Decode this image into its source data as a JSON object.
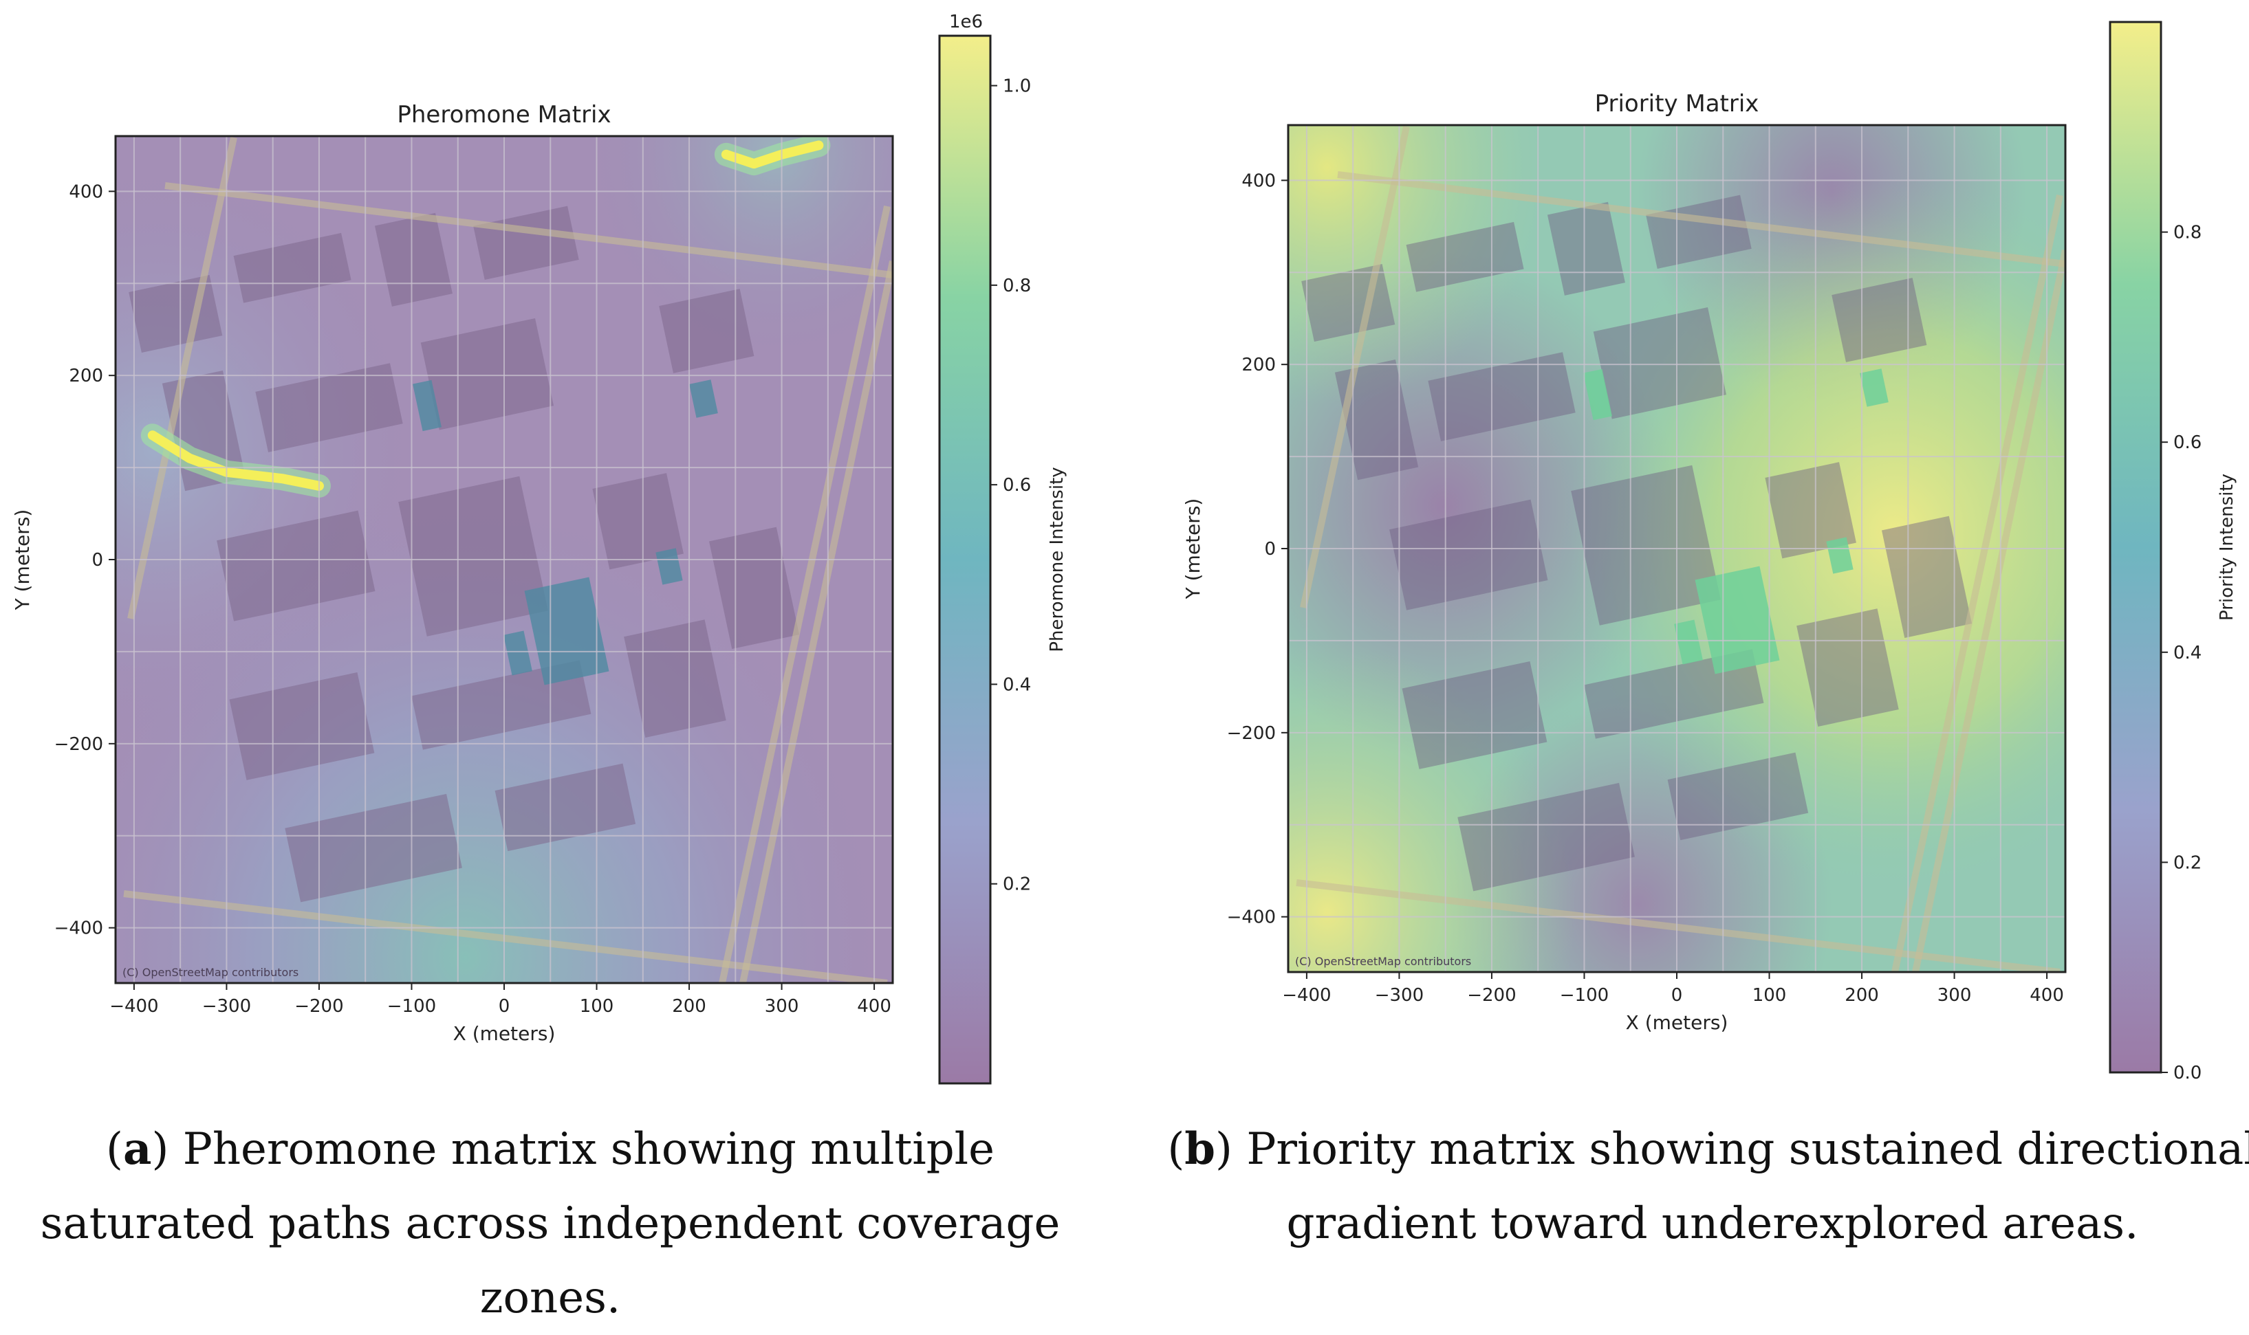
{
  "chart_data": [
    {
      "type": "heatmap",
      "title": "Pheromone Matrix",
      "xlabel": "X (meters)",
      "ylabel": "Y (meters)",
      "xlim": [
        -420,
        420
      ],
      "ylim": [
        -460,
        460
      ],
      "xticks": [
        "−400",
        "−300",
        "−200",
        "−100",
        "0",
        "100",
        "200",
        "300",
        "400"
      ],
      "xtick_values": [
        -400,
        -300,
        -200,
        -100,
        0,
        100,
        200,
        300,
        400
      ],
      "yticks": [
        "400",
        "200",
        "0",
        "−200",
        "−400"
      ],
      "ytick_values": [
        400,
        200,
        0,
        -200,
        -400
      ],
      "grid": true,
      "colormap": "viridis",
      "background": "OpenStreetMap street map",
      "map_credit": "(C) OpenStreetMap contributors",
      "colorbar": {
        "label": "Pheromone Intensity",
        "offset_text": "1e6",
        "range": [
          0.0,
          1.05
        ],
        "ticks": [
          "0.2",
          "0.4",
          "0.6",
          "0.8",
          "1.0"
        ],
        "tick_values": [
          0.2,
          0.4,
          0.6,
          0.8,
          1.0
        ]
      },
      "saturated_paths": [
        {
          "points": [
            [
              -380,
              135
            ],
            [
              -340,
              110
            ],
            [
              -300,
              95
            ],
            [
              -240,
              88
            ],
            [
              -200,
              80
            ]
          ]
        },
        {
          "points": [
            [
              240,
              440
            ],
            [
              270,
              430
            ],
            [
              300,
              440
            ],
            [
              340,
              450
            ]
          ]
        }
      ],
      "caption_letter": "a",
      "caption_text": " Pheromone matrix showing multiple saturated paths across independent coverage zones."
    },
    {
      "type": "heatmap",
      "title": "Priority Matrix",
      "xlabel": "X (meters)",
      "ylabel": "Y (meters)",
      "xlim": [
        -420,
        420
      ],
      "ylim": [
        -460,
        460
      ],
      "xticks": [
        "−400",
        "−300",
        "−200",
        "−100",
        "0",
        "100",
        "200",
        "300",
        "400"
      ],
      "xtick_values": [
        -400,
        -300,
        -200,
        -100,
        0,
        100,
        200,
        300,
        400
      ],
      "yticks": [
        "400",
        "200",
        "0",
        "−200",
        "−400"
      ],
      "ytick_values": [
        400,
        200,
        0,
        -200,
        -400
      ],
      "grid": true,
      "colormap": "viridis",
      "background": "OpenStreetMap street map",
      "map_credit": "(C) OpenStreetMap contributors",
      "colorbar": {
        "label": "Priority Intensity",
        "offset_text": "",
        "range": [
          0.0,
          1.0
        ],
        "ticks": [
          "0.0",
          "0.2",
          "0.4",
          "0.6",
          "0.8"
        ],
        "tick_values": [
          0.0,
          0.2,
          0.4,
          0.6,
          0.8
        ]
      },
      "caption_letter": "b",
      "caption_text": " Priority matrix showing sustained directional gradient toward underexplored areas."
    }
  ]
}
